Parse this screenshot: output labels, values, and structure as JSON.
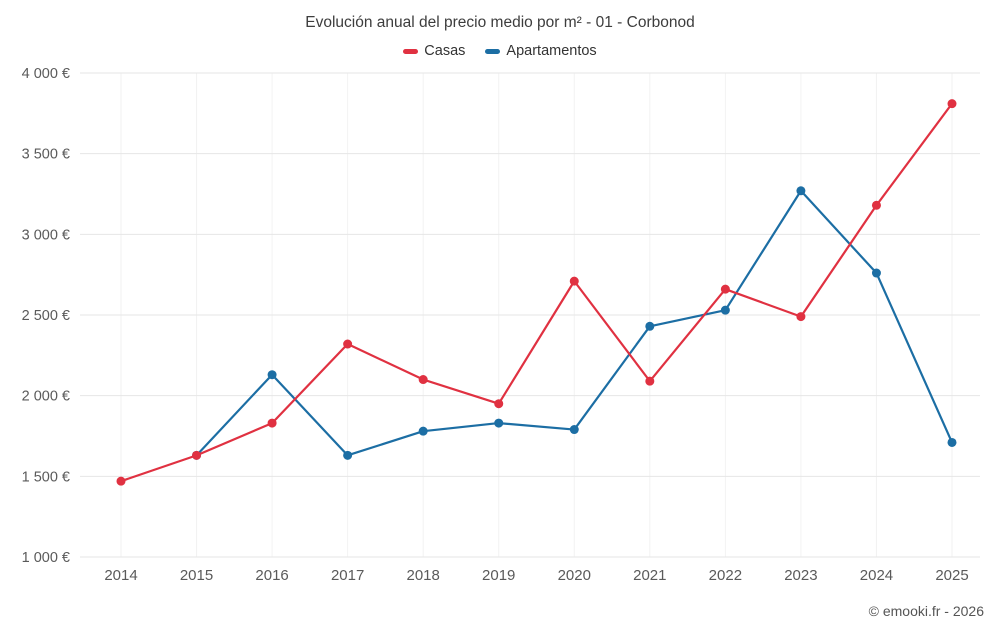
{
  "header": {
    "title": "Evolución anual del precio medio por m² - 01 - Corbonod"
  },
  "footer": {
    "copyright": "© emooki.fr - 2026"
  },
  "chart_data": {
    "type": "line",
    "title": "Evolución anual del precio medio por m² - 01 - Corbonod",
    "categories": [
      "2014",
      "2015",
      "2016",
      "2017",
      "2018",
      "2019",
      "2020",
      "2021",
      "2022",
      "2023",
      "2024",
      "2025"
    ],
    "series": [
      {
        "name": "Casas",
        "color": "#e03141",
        "values": [
          1470,
          1630,
          1830,
          2320,
          2100,
          1950,
          2710,
          2090,
          2660,
          2490,
          3180,
          3810
        ]
      },
      {
        "name": "Apartamentos",
        "color": "#1c6ea4",
        "values": [
          null,
          1630,
          2130,
          1630,
          1780,
          1830,
          1790,
          2430,
          2530,
          3270,
          2760,
          1710
        ]
      }
    ],
    "xlabel": "",
    "ylabel": "",
    "ylim": [
      1000,
      4000
    ],
    "yticks": [
      1000,
      1500,
      2000,
      2500,
      3000,
      3500,
      4000
    ],
    "ytick_labels": [
      "1 000 €",
      "1 500 €",
      "2 000 €",
      "2 500 €",
      "3 000 €",
      "3 500 €",
      "4 000 €"
    ],
    "grid": true,
    "legend_position": "top",
    "colors": {
      "grid": "#e6e6e6",
      "grid_vertical": "#f2f2f2",
      "axis_text": "#5a5a5a",
      "title_text": "#3d3d3d"
    }
  }
}
